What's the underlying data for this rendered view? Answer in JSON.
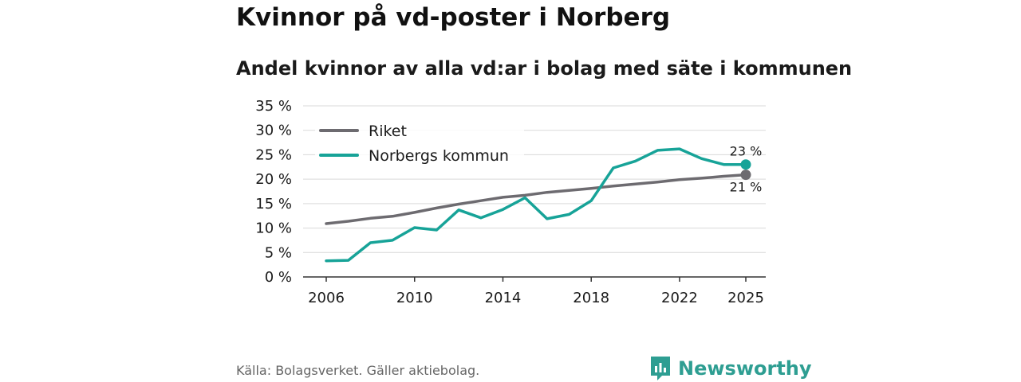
{
  "title": "Kvinnor på vd-poster i Norberg",
  "subtitle": "Andel kvinnor av alla vd:ar i bolag med säte i kommunen",
  "source": "Källa: Bolagsverket. Gäller aktiebolag.",
  "brand": {
    "name": "Newsworthy",
    "icon": "newsworthy-logo-icon"
  },
  "colors": {
    "riket": "#6d6b70",
    "norberg": "#17a398",
    "grid": "#d9d9d9",
    "axis": "#333333"
  },
  "chart_data": {
    "type": "line",
    "title": "Kvinnor på vd-poster i Norberg",
    "subtitle": "Andel kvinnor av alla vd:ar i bolag med säte i kommunen",
    "xlabel": "",
    "ylabel": "",
    "x": [
      2006,
      2007,
      2008,
      2009,
      2010,
      2011,
      2012,
      2013,
      2014,
      2015,
      2016,
      2017,
      2018,
      2019,
      2020,
      2021,
      2022,
      2023,
      2024,
      2025
    ],
    "xticks": [
      2006,
      2010,
      2014,
      2018,
      2022,
      2025
    ],
    "xtick_labels": [
      "2006",
      "2010",
      "2014",
      "2018",
      "2022",
      "2025"
    ],
    "xlim": [
      2006,
      2025
    ],
    "ylim": [
      0,
      35
    ],
    "yticks": [
      0,
      5,
      10,
      15,
      20,
      25,
      30,
      35
    ],
    "ytick_labels": [
      "0 %",
      "5 %",
      "10 %",
      "15 %",
      "20 %",
      "25 %",
      "30 %",
      "35 %"
    ],
    "grid": true,
    "legend_position": "top-left",
    "series": [
      {
        "name": "Riket",
        "color": "#6d6b70",
        "values": [
          10.9,
          11.4,
          12.0,
          12.4,
          13.2,
          14.1,
          14.9,
          15.6,
          16.3,
          16.7,
          17.3,
          17.7,
          18.1,
          18.6,
          19.0,
          19.4,
          19.9,
          20.2,
          20.6,
          20.9
        ],
        "end_label": "21 %"
      },
      {
        "name": "Norbergs kommun",
        "color": "#17a398",
        "values": [
          3.3,
          3.4,
          7.0,
          7.5,
          10.1,
          9.6,
          13.7,
          12.1,
          13.8,
          16.2,
          11.9,
          12.8,
          15.6,
          22.3,
          23.7,
          25.9,
          26.2,
          24.2,
          23.0,
          23.0
        ],
        "end_label": "23 %"
      }
    ]
  }
}
